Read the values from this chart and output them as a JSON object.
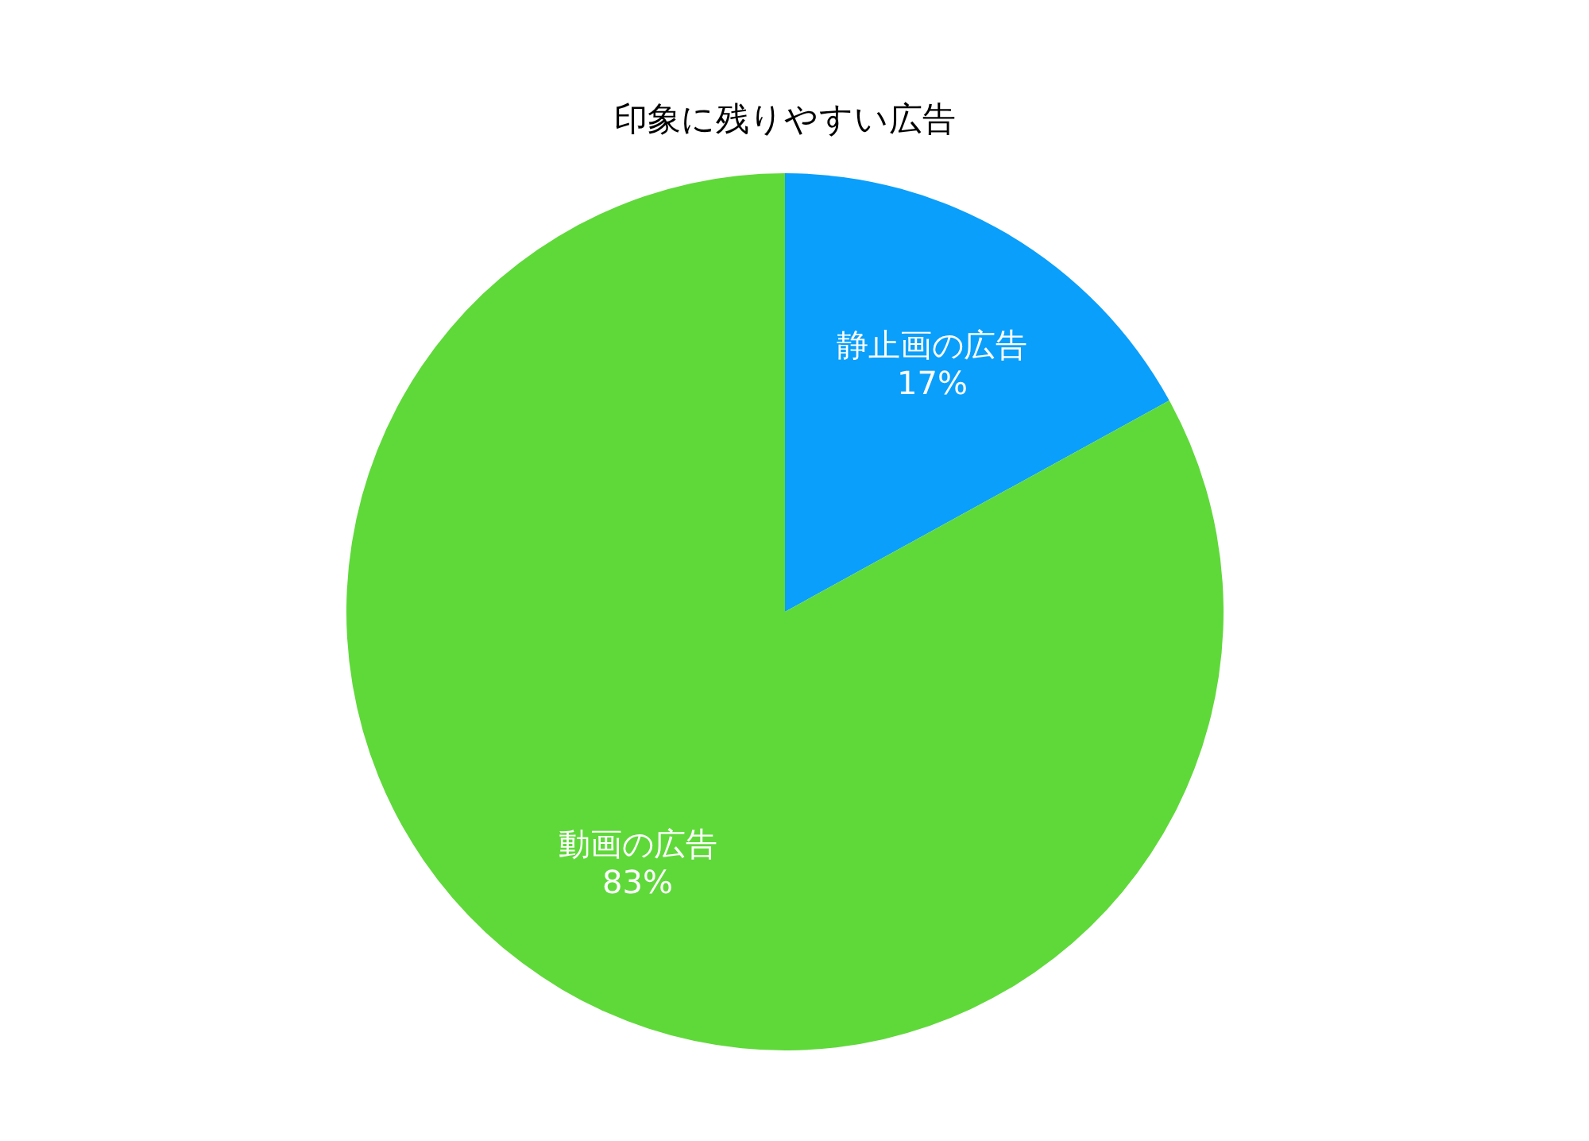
{
  "chart_data": {
    "type": "pie",
    "title": "印象に残りやすい広告",
    "categories": [
      "静止画の広告",
      "動画の広告"
    ],
    "values": [
      17,
      83
    ],
    "colors": [
      "#0a9ffb",
      "#5fd93a"
    ],
    "value_labels": [
      "17%",
      "83%"
    ]
  }
}
